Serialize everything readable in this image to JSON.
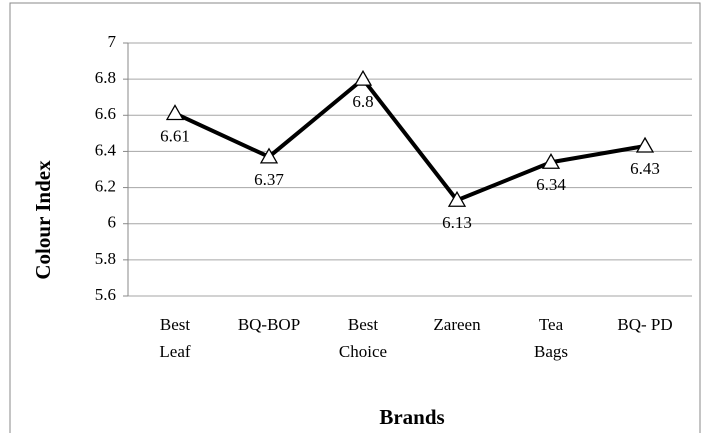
{
  "chart_data": {
    "type": "line",
    "x_label": "Brands",
    "y_label": "Colour Index",
    "categories": [
      [
        "Best",
        "Leaf"
      ],
      [
        "BQ-BOP"
      ],
      [
        "Best",
        "Choice"
      ],
      [
        "Zareen"
      ],
      [
        "Tea",
        "Bags"
      ],
      [
        "BQ- PD"
      ]
    ],
    "series": [
      {
        "name": "Colour Index",
        "color": "#000000",
        "values": [
          6.61,
          6.37,
          6.8,
          6.13,
          6.34,
          6.43
        ]
      }
    ],
    "ylim": [
      5.6,
      7
    ],
    "yticks": [
      5.6,
      5.8,
      6,
      6.2,
      6.4,
      6.6,
      6.8,
      7
    ],
    "grid": true,
    "marker": "triangle",
    "data_labels": true
  }
}
